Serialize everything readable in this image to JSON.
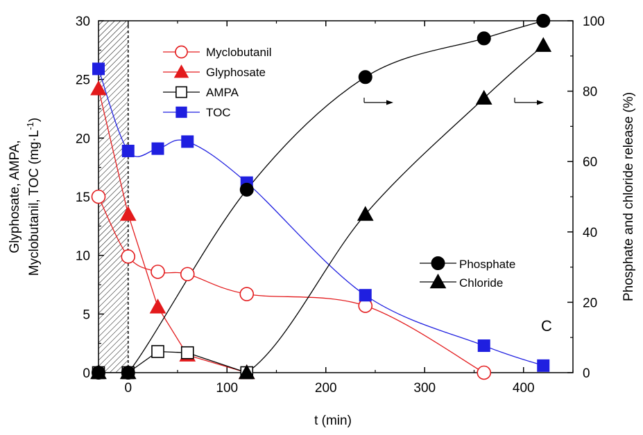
{
  "chart_data": {
    "type": "line",
    "panel_label": "C",
    "xlabel": "t (min)",
    "ylabel_left_line1": "Glyphosate, AMPA,",
    "ylabel_left_line2": "Myclobutanil, TOC (mg·L",
    "ylabel_left_sup": "-1",
    "ylabel_left_end": ")",
    "ylabel_right": "Phosphate and chloride release (%)",
    "xlim": [
      -30,
      450
    ],
    "ylim_left": [
      0,
      30
    ],
    "ylim_right": [
      0,
      100
    ],
    "x_ticks": [
      0,
      100,
      200,
      300,
      400
    ],
    "y_left_ticks": [
      0,
      5,
      10,
      15,
      20,
      25,
      30
    ],
    "y_right_ticks": [
      0,
      20,
      40,
      60,
      80,
      100
    ],
    "shaded_region": [
      -30,
      0
    ],
    "series": [
      {
        "name": "Myclobutanil",
        "axis": "left",
        "marker": "circle-open",
        "color": "#e31a1c",
        "x": [
          -30,
          0,
          30,
          60,
          120,
          240,
          360
        ],
        "y": [
          15.0,
          9.9,
          8.6,
          8.4,
          6.7,
          5.7,
          0.0
        ]
      },
      {
        "name": "Glyphosate",
        "axis": "left",
        "marker": "triangle-filled",
        "color": "#e31a1c",
        "x": [
          -30,
          0,
          30,
          60,
          120
        ],
        "y": [
          24.2,
          13.5,
          5.6,
          1.5,
          0.0
        ]
      },
      {
        "name": "AMPA",
        "axis": "left",
        "marker": "square-open",
        "color": "#000000",
        "x": [
          -30,
          0,
          30,
          60,
          120
        ],
        "y": [
          0.0,
          0.0,
          1.8,
          1.7,
          0.0
        ]
      },
      {
        "name": "TOC",
        "axis": "left",
        "marker": "square-filled",
        "color": "#1f1fe0",
        "x": [
          -30,
          0,
          30,
          60,
          120,
          240,
          360,
          420
        ],
        "y": [
          25.9,
          18.9,
          19.1,
          19.7,
          16.2,
          6.6,
          2.3,
          0.6
        ]
      },
      {
        "name": "Phosphate",
        "axis": "right",
        "marker": "circle-filled",
        "color": "#000000",
        "x": [
          -30,
          0,
          120,
          240,
          360,
          420
        ],
        "y": [
          0,
          0,
          52,
          84,
          95,
          100
        ]
      },
      {
        "name": "Chloride",
        "axis": "right",
        "marker": "triangle-filled",
        "color": "#000000",
        "x": [
          -30,
          0,
          120,
          240,
          360,
          420
        ],
        "y": [
          0,
          0,
          0,
          45,
          78,
          93
        ]
      }
    ],
    "legend_left": [
      "Myclobutanil",
      "Glyphosate",
      "AMPA",
      "TOC"
    ],
    "legend_right": [
      "Phosphate",
      "Chloride"
    ],
    "axis_arrows": "right"
  }
}
